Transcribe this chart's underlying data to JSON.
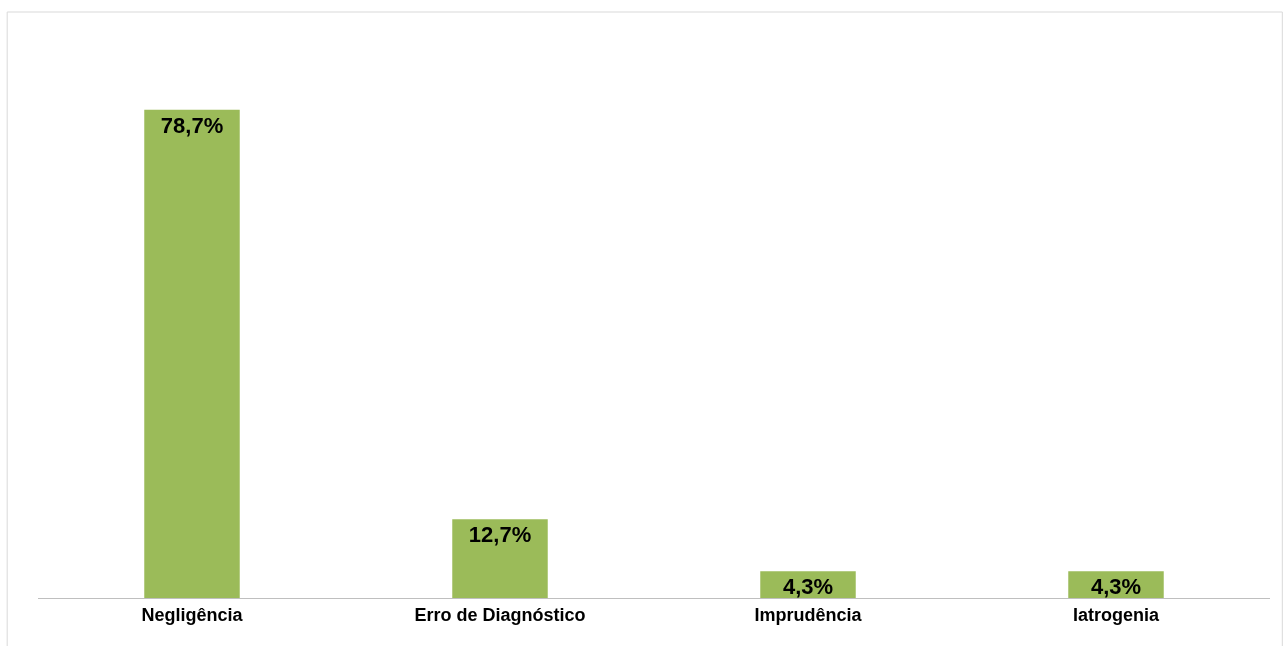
{
  "chart_data": {
    "type": "bar",
    "categories": [
      "Negligência",
      "Erro de Diagnóstico",
      "Imprudência",
      "Iatrogenia"
    ],
    "values": [
      78.7,
      12.7,
      4.3,
      4.3
    ],
    "value_labels": [
      "78,7%",
      "12,7%",
      "4,3%",
      "4,3%"
    ],
    "color": "#9bbb59"
  }
}
